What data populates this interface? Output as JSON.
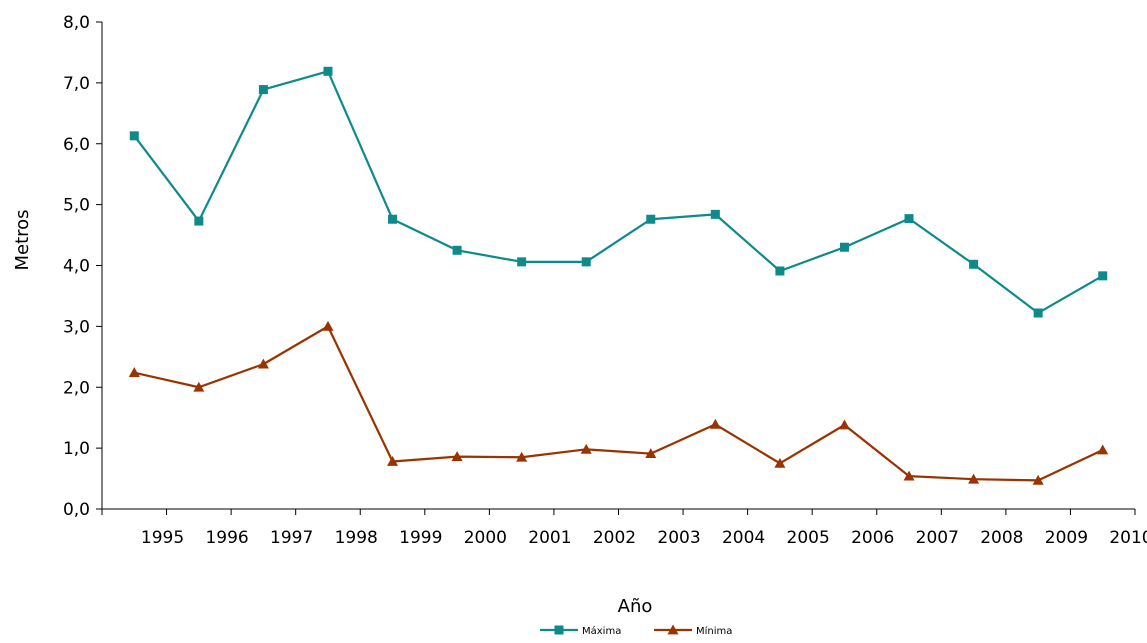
{
  "chart_data": {
    "type": "line",
    "title": "",
    "xlabel": "Año",
    "ylabel": "Metros",
    "ylim": [
      0,
      8
    ],
    "y_ticks": [
      "0,0",
      "1,0",
      "2,0",
      "3,0",
      "4,0",
      "5,0",
      "6,0",
      "7,0",
      "8,0"
    ],
    "x_tick_labels": [
      "1995",
      "1996",
      "1997",
      "1998",
      "1999",
      "2000",
      "2001",
      "2002",
      "2003",
      "2004",
      "2005",
      "2006",
      "2007",
      "2008",
      "2009",
      "2010"
    ],
    "grid": false,
    "legend_position": "bottom-center",
    "series": [
      {
        "name": "Máxima",
        "color": "#0E8A8A",
        "marker": "square",
        "values": [
          6.13,
          4.73,
          6.89,
          7.19,
          4.76,
          4.25,
          4.06,
          4.06,
          4.76,
          4.84,
          3.91,
          4.3,
          4.77,
          4.02,
          3.22,
          3.83
        ]
      },
      {
        "name": "Mínima",
        "color": "#993300",
        "marker": "triangle",
        "values": [
          2.24,
          2.0,
          2.38,
          3.0,
          0.78,
          0.86,
          0.85,
          0.98,
          0.91,
          1.39,
          0.75,
          1.38,
          0.54,
          0.49,
          0.47,
          0.97
        ]
      }
    ]
  }
}
